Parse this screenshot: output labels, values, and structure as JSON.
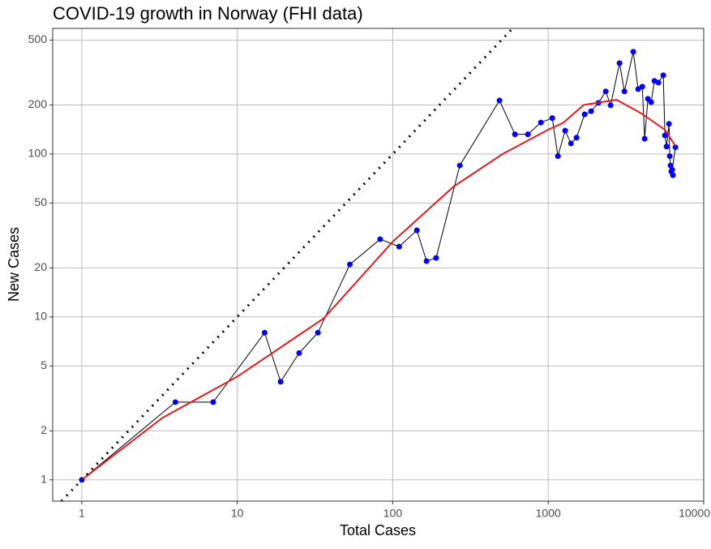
{
  "chart_data": {
    "type": "line",
    "title": "COVID-19 growth in Norway (FHI data)",
    "x_label": "Total Cases",
    "y_label": "New Cases",
    "x_scale": "log",
    "y_scale": "log",
    "grid": true,
    "xlim": [
      0.65,
      10000
    ],
    "ylim": [
      0.74,
      590
    ],
    "xticks": [
      1,
      10,
      100,
      1000,
      10000
    ],
    "yticks": [
      1,
      2,
      5,
      10,
      20,
      50,
      100,
      200,
      500
    ],
    "series": [
      {
        "color": "#000000",
        "marker_color": "#0000ff",
        "dash": "solid",
        "x": [
          1,
          4,
          7,
          15,
          19,
          25,
          33,
          53,
          83,
          110,
          143,
          165,
          190,
          270,
          486,
          611,
          740,
          897,
          1062,
          1154,
          1285,
          1400,
          1521,
          1714,
          1888,
          2105,
          2344,
          2519,
          2875,
          3090,
          3525,
          3787,
          4027,
          4171,
          4375,
          4592,
          4820,
          5115,
          5495,
          5630,
          5770,
          5980,
          6050,
          6120,
          6190,
          6340,
          6270,
          6580
        ],
        "values": [
          1,
          3,
          3,
          8,
          4,
          6,
          8,
          21,
          30,
          27,
          34,
          22,
          23,
          85,
          213,
          132,
          132,
          156,
          166,
          97,
          139,
          116,
          126,
          175,
          183,
          206,
          242,
          199,
          361,
          242,
          424,
          250,
          259,
          124,
          218,
          208,
          281,
          274,
          304,
          130,
          111,
          153,
          97,
          85,
          78,
          74,
          80,
          110
        ]
      },
      {
        "color": "#e41a1c",
        "dash": "solid",
        "x": [
          1,
          3.3,
          10,
          36,
          100,
          246,
          509,
          1000,
          1245,
          1690,
          2750,
          3950,
          5630,
          6580
        ],
        "values": [
          1,
          2.4,
          4.3,
          9.8,
          29,
          63,
          100,
          141,
          155,
          200,
          215,
          178,
          141,
          112
        ]
      },
      {
        "color": "#000000",
        "dash": "dotted",
        "x": [
          0.74,
          590
        ],
        "values": [
          0.74,
          590
        ]
      }
    ]
  }
}
